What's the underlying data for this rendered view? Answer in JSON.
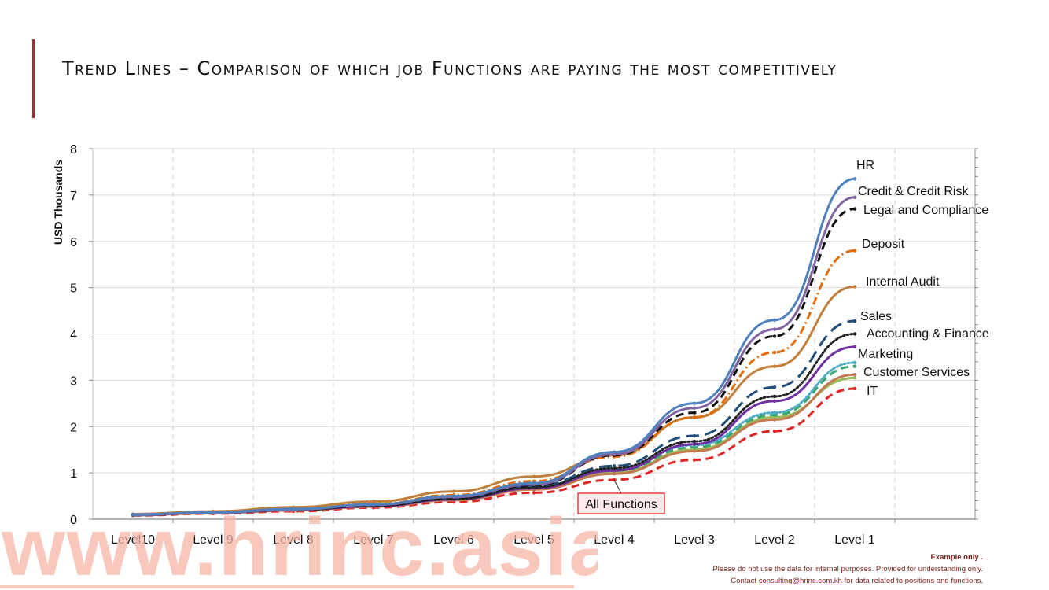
{
  "slide": {
    "title": "Trend Lines – Comparison of which job Functions are paying the most competitively"
  },
  "watermark": {
    "text": "www.hrinc.asia"
  },
  "disclaimer": {
    "line1": "Example only .",
    "line2": "Please do not use the data for internal purposes.  Provided for understanding only.",
    "line3_before": "Contact ",
    "email": "consulting@hrinc.com.kh",
    "line3_after": " for data related to positions and functions."
  },
  "chart_data": {
    "type": "line",
    "ylabel": "USD Thousands",
    "xlabel": "",
    "ylim": [
      0,
      8
    ],
    "yticks": [
      "0",
      "1",
      "2",
      "3",
      "4",
      "5",
      "6",
      "7",
      "8"
    ],
    "grid": {
      "vertical": "dashed",
      "horizontal": "solid"
    },
    "categories": [
      "Level10",
      "Level 9",
      "Level 8",
      "Level 7",
      "Level 6",
      "Level 5",
      "Level 4",
      "Level 3",
      "Level 2",
      "Level 1"
    ],
    "series": [
      {
        "name": "HR",
        "color": "#4f81bd",
        "dash": "solid",
        "values": [
          0.1,
          0.15,
          0.22,
          0.32,
          0.5,
          0.78,
          1.45,
          2.5,
          4.3,
          7.35
        ]
      },
      {
        "name": "Credit & Credit Risk",
        "color": "#8064a2",
        "dash": "solid",
        "values": [
          0.09,
          0.14,
          0.21,
          0.31,
          0.48,
          0.75,
          1.4,
          2.4,
          4.1,
          6.95
        ]
      },
      {
        "name": "Legal and Compliance",
        "color": "#111111",
        "dash": "dashed",
        "values": [
          0.09,
          0.14,
          0.21,
          0.3,
          0.46,
          0.73,
          1.38,
          2.3,
          3.95,
          6.7
        ]
      },
      {
        "name": "Deposit",
        "color": "#e36c0a",
        "dash": "dashdot",
        "values": [
          0.1,
          0.15,
          0.22,
          0.33,
          0.52,
          0.82,
          1.35,
          2.2,
          3.6,
          5.8
        ]
      },
      {
        "name": "Internal Audit",
        "color": "#c0803c",
        "dash": "solid",
        "values": [
          0.11,
          0.17,
          0.26,
          0.38,
          0.6,
          0.92,
          1.38,
          2.2,
          3.3,
          5.02
        ]
      },
      {
        "name": "Sales",
        "color": "#1f4e79",
        "dash": "longdash",
        "values": [
          0.09,
          0.14,
          0.21,
          0.3,
          0.46,
          0.72,
          1.15,
          1.8,
          2.85,
          4.28
        ]
      },
      {
        "name": "Accounting & Finance",
        "color": "#222222",
        "dash": "dotted",
        "values": [
          0.09,
          0.14,
          0.2,
          0.29,
          0.44,
          0.69,
          1.1,
          1.68,
          2.65,
          4.0
        ]
      },
      {
        "name": "Marketing",
        "color": "#7030a0",
        "dash": "solid",
        "values": [
          0.09,
          0.14,
          0.2,
          0.28,
          0.43,
          0.67,
          1.05,
          1.62,
          2.55,
          3.72
        ]
      },
      {
        "name": "Customer Services",
        "color": "#4bacc6",
        "dash": "dotted",
        "values": [
          0.1,
          0.15,
          0.21,
          0.3,
          0.45,
          0.7,
          1.08,
          1.6,
          2.3,
          3.38
        ]
      },
      {
        "name": "",
        "color": "#3aa76d",
        "dash": "dashed",
        "values": [
          0.1,
          0.15,
          0.21,
          0.29,
          0.44,
          0.68,
          1.05,
          1.55,
          2.25,
          3.3
        ]
      },
      {
        "name": "IT",
        "color": "#c27a52",
        "dash": "solid",
        "values": [
          0.09,
          0.13,
          0.19,
          0.27,
          0.41,
          0.64,
          0.98,
          1.47,
          2.15,
          3.12
        ]
      },
      {
        "name": "",
        "color": "#9bbb59",
        "dash": "solid",
        "values": [
          0.1,
          0.14,
          0.2,
          0.28,
          0.42,
          0.65,
          1.0,
          1.5,
          2.2,
          3.05
        ]
      },
      {
        "name": "All Functions",
        "color": "#e02424",
        "dash": "dashed",
        "values": [
          0.08,
          0.12,
          0.17,
          0.25,
          0.37,
          0.57,
          0.85,
          1.28,
          1.9,
          2.82
        ]
      }
    ],
    "annotations": [
      {
        "text": "All Functions",
        "boxed": true,
        "color": "#e02424"
      }
    ]
  }
}
